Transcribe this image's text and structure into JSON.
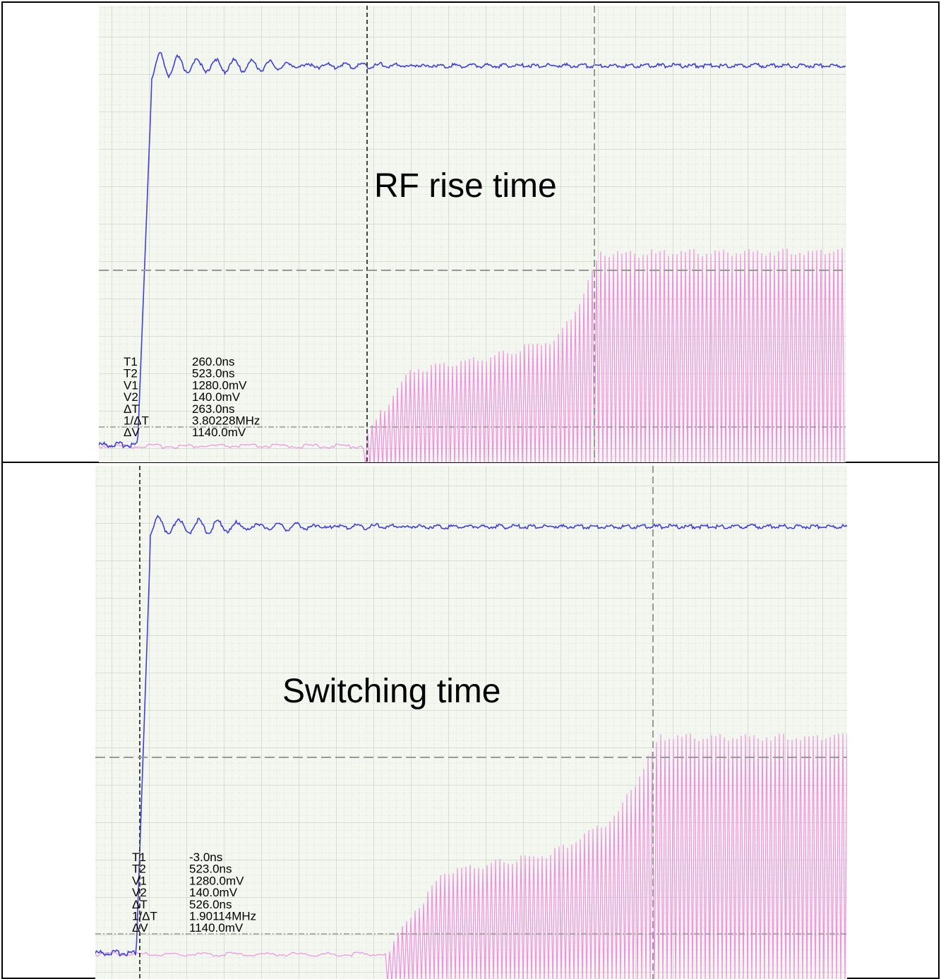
{
  "panels": [
    {
      "title": "RF rise time",
      "measurements": [
        {
          "label": "T1",
          "value": "260.0ns"
        },
        {
          "label": "T2",
          "value": "523.0ns"
        },
        {
          "label": "V1",
          "value": "1280.0mV"
        },
        {
          "label": "V2",
          "value": "140.0mV"
        },
        {
          "label": "ΔT",
          "value": "263.0ns"
        },
        {
          "label": "1/ΔT",
          "value": "3.80228MHz"
        },
        {
          "label": "ΔV",
          "value": "1140.0mV"
        }
      ]
    },
    {
      "title": "Switching time",
      "measurements": [
        {
          "label": "T1",
          "value": "-3.0ns"
        },
        {
          "label": "T2",
          "value": "523.0ns"
        },
        {
          "label": "V1",
          "value": "1280.0mV"
        },
        {
          "label": "V2",
          "value": "140.0mV"
        },
        {
          "label": "ΔT",
          "value": "526.0ns"
        },
        {
          "label": "1/ΔT",
          "value": "1.90114MHz"
        },
        {
          "label": "ΔV",
          "value": "1140.0mV"
        }
      ]
    }
  ]
}
